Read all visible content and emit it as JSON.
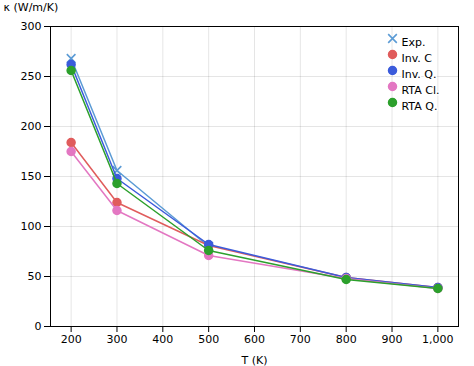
{
  "chart_data": {
    "type": "line",
    "xlabel": "T (K)",
    "ylabel": "κ (W/m/K)",
    "xlim": [
      155,
      1045
    ],
    "ylim": [
      0,
      300
    ],
    "xticks": [
      200,
      300,
      400,
      500,
      600,
      700,
      800,
      900,
      1000
    ],
    "yticks": [
      0,
      50,
      100,
      150,
      200,
      250,
      300
    ],
    "grid": true,
    "legend": "upper right",
    "series": [
      {
        "name": "Exp.",
        "color": "#5b9bd5",
        "marker": "x",
        "line_style": "solid",
        "x": [
          200,
          300,
          500
        ],
        "values": [
          268,
          156,
          80
        ]
      },
      {
        "name": "Inv. C",
        "color": "#e05c5c",
        "marker": "o",
        "line_style": "solid",
        "x": [
          200,
          300,
          500,
          800,
          1000
        ],
        "values": [
          184,
          124,
          81,
          49,
          39
        ]
      },
      {
        "name": "Inv. Q.",
        "color": "#3b5bdb",
        "marker": "o",
        "line_style": "solid",
        "x": [
          200,
          300,
          500,
          800,
          1000
        ],
        "values": [
          262,
          148,
          82,
          49,
          39
        ]
      },
      {
        "name": "RTA Cl.",
        "color": "#e377c2",
        "marker": "o",
        "line_style": "solid",
        "x": [
          200,
          300,
          500,
          800,
          1000
        ],
        "values": [
          175,
          116,
          71,
          48,
          38
        ]
      },
      {
        "name": "RTA Q.",
        "color": "#2ca02c",
        "marker": "o",
        "line_style": "solid",
        "x": [
          200,
          300,
          500,
          800,
          1000
        ],
        "values": [
          256,
          143,
          76,
          47,
          38
        ]
      }
    ]
  }
}
